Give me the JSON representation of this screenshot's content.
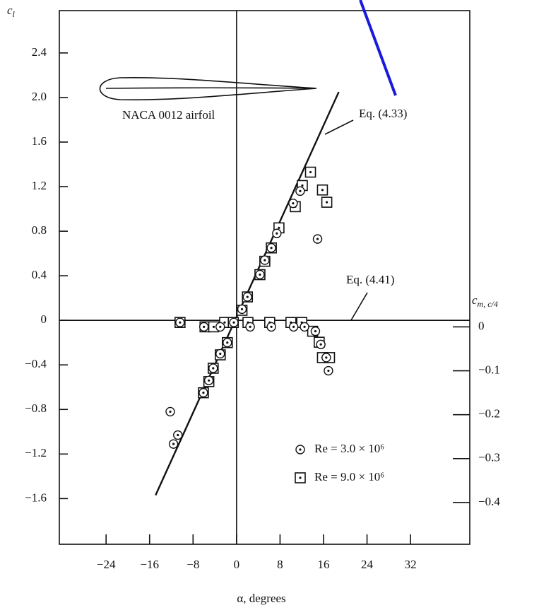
{
  "chart_data": {
    "type": "scatter",
    "y_label": "c",
    "y_label_sub": "l",
    "y2_label": "c",
    "y2_label_sub": "m, c/4",
    "x_label": "α, degrees",
    "airfoil_label": "NACA 0012 airfoil",
    "xlim": [
      -32.6,
      42.9
    ],
    "xticks": [
      {
        "value": -24,
        "label": "−24"
      },
      {
        "value": -16,
        "label": "−16"
      },
      {
        "value": -8,
        "label": "−8"
      },
      0,
      8,
      16,
      24,
      32
    ],
    "ylim": [
      -2.01,
      2.78
    ],
    "yticks": [
      {
        "value": 2.4,
        "label": "2.4"
      },
      {
        "value": 2.0,
        "label": "2.0"
      },
      {
        "value": 1.6,
        "label": "1.6"
      },
      {
        "value": 1.2,
        "label": "1.2"
      },
      {
        "value": 0.8,
        "label": "0.8"
      },
      {
        "value": 0.4,
        "label": "0.4"
      },
      0,
      {
        "value": -0.4,
        "label": "−0.4"
      },
      {
        "value": -0.8,
        "label": "−0.8"
      },
      {
        "value": -1.2,
        "label": "−1.2"
      },
      {
        "value": -1.6,
        "label": "−1.6"
      }
    ],
    "y2lim": [
      -0.495,
      0.72
    ],
    "y2ticks": [
      0,
      {
        "value": -0.1,
        "label": "−0.1"
      },
      {
        "value": -0.2,
        "label": "−0.2"
      },
      {
        "value": -0.3,
        "label": "−0.3"
      },
      {
        "value": -0.4,
        "label": "−0.4"
      }
    ],
    "legend": "lower right",
    "theory_line": {
      "name": "Eq. (4.33)",
      "x": [
        -14.9,
        18.8
      ],
      "values": [
        -1.57,
        2.05
      ]
    },
    "cm_line_label": "Eq. (4.41)",
    "series": [
      {
        "name": "Re = 3.0 × 10⁶",
        "marker": "circle",
        "color": "#111",
        "x": [
          -12.2,
          -11.6,
          -10.8,
          -6.1,
          -5.1,
          -4.3,
          -3.0,
          -1.7,
          1.0,
          2.0,
          4.3,
          5.2,
          6.4,
          7.4,
          10.4,
          11.7,
          14.9
        ],
        "values": [
          -0.82,
          -1.11,
          -1.03,
          -0.65,
          -0.54,
          -0.43,
          -0.3,
          -0.2,
          0.1,
          0.21,
          0.41,
          0.54,
          0.65,
          0.78,
          1.05,
          1.16,
          0.73
        ],
        "cm_x": [
          -10.4,
          -6.0,
          -3.0,
          -0.5,
          2.5,
          6.4,
          10.5,
          12.5,
          14.5,
          15.5,
          16.5,
          16.9
        ],
        "cm_values": [
          0.01,
          0.0,
          0.0,
          0.01,
          0.0,
          0.0,
          0.0,
          0.0,
          -0.01,
          -0.04,
          -0.07,
          -0.1
        ]
      },
      {
        "name": "Re = 9.0 × 10⁶",
        "marker": "square",
        "color": "#111",
        "x": [
          -6.1,
          -5.1,
          -4.3,
          -3.0,
          -1.7,
          1.0,
          2.0,
          4.3,
          5.2,
          6.4,
          7.8,
          10.8,
          12.1,
          13.6,
          15.8,
          16.6
        ],
        "values": [
          -0.65,
          -0.55,
          -0.43,
          -0.31,
          -0.2,
          0.09,
          0.21,
          0.41,
          0.53,
          0.65,
          0.83,
          1.02,
          1.21,
          1.33,
          1.17,
          1.06
        ],
        "cm_x": [
          -10.4,
          -5.8,
          -4.2,
          -2.2,
          -0.6,
          2.1,
          6.1,
          10.0,
          12.0,
          14.0,
          15.2,
          15.8,
          17.1
        ],
        "cm_values": [
          0.01,
          0.0,
          0.0,
          0.01,
          0.01,
          0.01,
          0.01,
          0.01,
          0.01,
          -0.01,
          -0.035,
          -0.07,
          -0.07
        ]
      }
    ]
  }
}
